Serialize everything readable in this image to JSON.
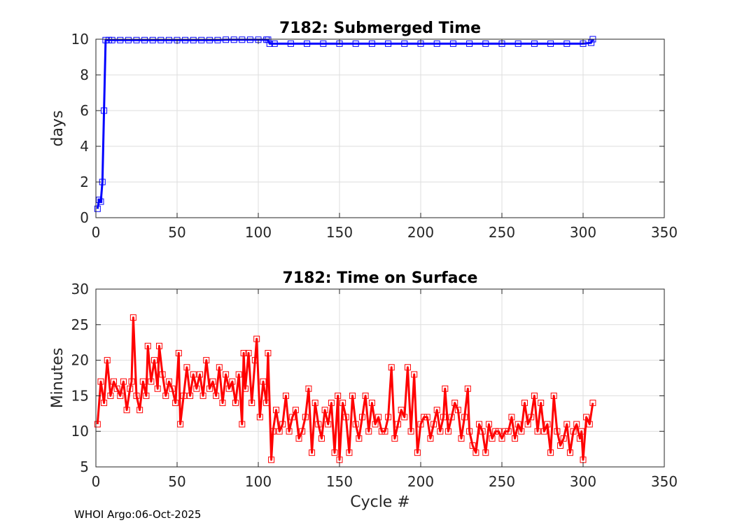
{
  "footer": {
    "text": "WHOI Argo:06-Oct-2025"
  },
  "colors": {
    "submerged": "#0000ff",
    "surface": "#ff0000",
    "grid": "#dedede",
    "axis": "#262626"
  },
  "chart_data": [
    {
      "type": "line",
      "title": "7182: Submerged Time",
      "xlabel": "",
      "ylabel": "days",
      "xlim": [
        0,
        350
      ],
      "ylim": [
        0,
        10
      ],
      "xticks": [
        0,
        50,
        100,
        150,
        200,
        250,
        300,
        350
      ],
      "yticks": [
        0,
        2,
        4,
        6,
        8,
        10
      ],
      "grid": true,
      "marker": "square",
      "series": [
        {
          "name": "Submerged Time",
          "x": [
            1,
            2,
            3,
            4,
            5,
            6,
            8,
            10,
            15,
            20,
            25,
            30,
            35,
            40,
            45,
            50,
            55,
            60,
            65,
            70,
            75,
            80,
            85,
            90,
            95,
            100,
            105,
            106,
            107,
            110,
            120,
            130,
            140,
            150,
            160,
            170,
            180,
            190,
            200,
            210,
            220,
            230,
            240,
            250,
            260,
            270,
            280,
            290,
            300,
            305,
            306
          ],
          "y": [
            0.5,
            1,
            0.9,
            2,
            6,
            9.95,
            9.95,
            9.95,
            9.95,
            9.95,
            9.95,
            9.95,
            9.95,
            9.95,
            9.95,
            9.95,
            9.95,
            9.95,
            9.95,
            9.95,
            9.95,
            9.97,
            9.97,
            9.97,
            9.97,
            9.97,
            9.97,
            9.97,
            9.75,
            9.75,
            9.75,
            9.75,
            9.75,
            9.75,
            9.75,
            9.75,
            9.75,
            9.75,
            9.75,
            9.75,
            9.75,
            9.75,
            9.75,
            9.75,
            9.75,
            9.75,
            9.75,
            9.75,
            9.75,
            9.8,
            10
          ]
        }
      ]
    },
    {
      "type": "line",
      "title": "7182: Time on Surface",
      "xlabel": "Cycle #",
      "ylabel": "Minutes",
      "xlim": [
        0,
        350
      ],
      "ylim": [
        5,
        30
      ],
      "xticks": [
        0,
        50,
        100,
        150,
        200,
        250,
        300,
        350
      ],
      "yticks": [
        5,
        10,
        15,
        20,
        25,
        30
      ],
      "grid": true,
      "marker": "square",
      "series": [
        {
          "name": "Time on Surface",
          "x": [
            1,
            3,
            5,
            7,
            9,
            11,
            13,
            15,
            17,
            19,
            21,
            22,
            23,
            25,
            27,
            29,
            31,
            32,
            34,
            36,
            38,
            39,
            41,
            43,
            45,
            47,
            49,
            51,
            52,
            54,
            56,
            58,
            60,
            62,
            64,
            66,
            68,
            70,
            72,
            74,
            76,
            78,
            80,
            82,
            84,
            86,
            88,
            90,
            91,
            92,
            94,
            96,
            98,
            99,
            101,
            103,
            105,
            106,
            108,
            109,
            111,
            113,
            115,
            117,
            119,
            121,
            123,
            125,
            127,
            129,
            131,
            133,
            135,
            137,
            139,
            141,
            143,
            145,
            147,
            149,
            150,
            152,
            154,
            156,
            158,
            160,
            162,
            164,
            166,
            168,
            170,
            172,
            174,
            176,
            178,
            180,
            182,
            184,
            186,
            188,
            190,
            192,
            194,
            196,
            198,
            200,
            202,
            204,
            206,
            208,
            210,
            212,
            214,
            215,
            217,
            219,
            221,
            223,
            225,
            227,
            229,
            230,
            232,
            234,
            236,
            238,
            240,
            242,
            244,
            246,
            248,
            250,
            252,
            254,
            256,
            258,
            260,
            262,
            264,
            266,
            268,
            270,
            272,
            274,
            276,
            278,
            280,
            282,
            284,
            286,
            288,
            290,
            292,
            294,
            296,
            298,
            299,
            300,
            302,
            304,
            306
          ],
          "y": [
            11,
            17,
            14,
            20,
            15,
            17,
            16,
            15,
            17,
            13,
            16,
            17,
            26,
            15,
            13,
            17,
            15,
            22,
            17,
            20,
            16,
            22,
            18,
            15,
            17,
            16,
            14,
            21,
            11,
            15,
            19,
            15,
            18,
            16,
            18,
            15,
            20,
            16,
            17,
            15,
            19,
            14,
            18,
            16,
            17,
            14,
            18,
            11,
            21,
            16,
            21,
            14,
            20,
            23,
            12,
            17,
            14,
            21,
            6,
            10,
            13,
            10,
            11,
            15,
            10,
            12,
            13,
            9,
            10,
            12,
            16,
            7,
            14,
            11,
            9,
            13,
            11,
            14,
            7,
            15,
            6,
            14,
            12,
            7,
            15,
            11,
            9,
            12,
            15,
            10,
            14,
            11,
            12,
            10,
            10,
            12,
            19,
            9,
            11,
            13,
            12,
            19,
            10,
            18,
            7,
            11,
            12,
            12,
            9,
            11,
            13,
            10,
            12,
            16,
            10,
            12,
            14,
            13,
            9,
            12,
            16,
            10,
            8,
            7,
            11,
            10,
            7,
            11,
            9,
            10,
            10,
            9,
            10,
            10,
            12,
            9,
            11,
            10,
            14,
            11,
            12,
            15,
            10,
            14,
            10,
            11,
            7,
            15,
            10,
            8,
            9,
            11,
            7,
            10,
            11,
            9,
            10,
            6,
            12,
            11,
            14
          ]
        }
      ]
    }
  ]
}
